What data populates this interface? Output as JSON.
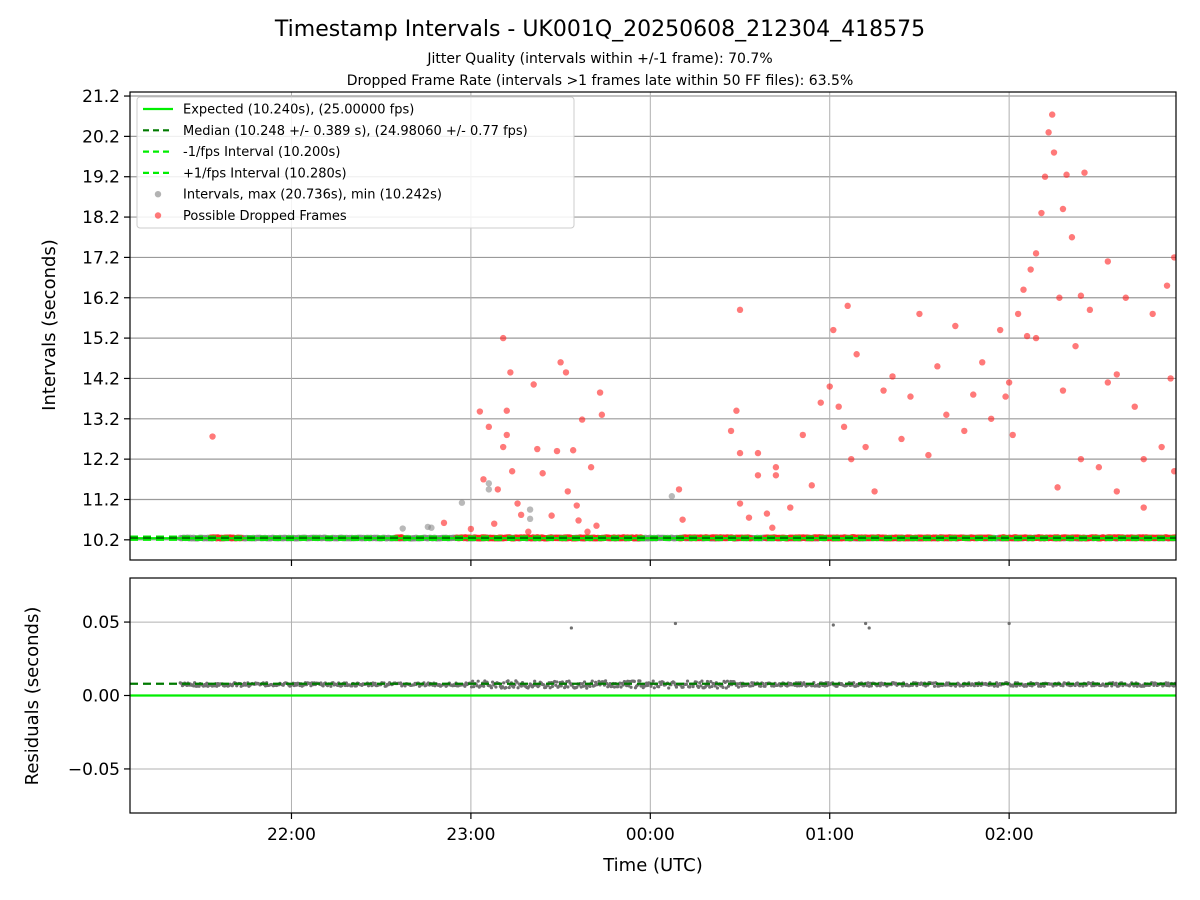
{
  "chart_data": [
    {
      "type": "scatter",
      "title": "Timestamp Intervals - UK001Q_20250608_212304_418575",
      "subtitle_lines": [
        "Jitter Quality (intervals within +/-1 frame): 70.7%",
        "Dropped Frame Rate (intervals >1 frames late within 50 FF files): 63.5%"
      ],
      "xlabel": "",
      "ylabel": "Intervals (seconds)",
      "x_unit": "hours relative to 00:00 UTC",
      "xlim": [
        -2.9,
        2.93
      ],
      "ylim": [
        9.7,
        21.3
      ],
      "yticks": [
        10.2,
        11.2,
        12.2,
        13.2,
        14.2,
        15.2,
        16.2,
        17.2,
        18.2,
        19.2,
        20.2,
        21.2
      ],
      "ytick_labels": [
        "10.2",
        "11.2",
        "12.2",
        "13.2",
        "14.2",
        "15.2",
        "16.2",
        "17.2",
        "18.2",
        "19.2",
        "20.2",
        "21.2"
      ],
      "xticks": [
        -2,
        -1,
        0,
        1,
        2
      ],
      "grid": true,
      "legend_position": "top-left",
      "colors": {
        "expected": "#00ee00",
        "median": "#007a00",
        "fps_bounds": "#00ee00",
        "intervals": "#808080",
        "dropped": "#ff2020"
      },
      "series": [
        {
          "name": "Expected (10.240s), (25.00000 fps)",
          "kind": "hline",
          "y": 10.24,
          "style": "solid"
        },
        {
          "name": "Median (10.248 +/- 0.389 s), (24.98060 +/- 0.77 fps)",
          "kind": "hline",
          "y": 10.248,
          "style": "dashed"
        },
        {
          "name": "-1/fps Interval (10.200s)",
          "kind": "hline",
          "y": 10.2,
          "style": "dashed"
        },
        {
          "name": "+1/fps Interval (10.280s)",
          "kind": "hline",
          "y": 10.28,
          "style": "dashed"
        },
        {
          "name": "Intervals, max (20.736s), min (10.242s)",
          "kind": "scatter",
          "base_y": 10.244,
          "base_x_range": [
            -2.62,
            2.93
          ],
          "points": [
            [
              -1.38,
              10.48
            ],
            [
              -1.22,
              10.5
            ],
            [
              -1.24,
              10.52
            ],
            [
              -1.05,
              11.12
            ],
            [
              -0.9,
              11.6
            ],
            [
              -0.9,
              11.45
            ],
            [
              -0.67,
              10.95
            ],
            [
              -0.67,
              10.72
            ],
            [
              0.12,
              11.28
            ]
          ]
        },
        {
          "name": "Possible Dropped Frames",
          "kind": "scatter",
          "base_y": 10.25,
          "base_x_ranges": [
            [
              -2.45,
              -2.28
            ],
            [
              -1.42,
              -1.38
            ],
            [
              -1.08,
              -1.0
            ],
            [
              -0.98,
              -0.05
            ],
            [
              0.16,
              0.56
            ],
            [
              0.64,
              1.9
            ],
            [
              1.95,
              2.93
            ]
          ],
          "points": [
            [
              -2.44,
              12.76
            ],
            [
              -1.15,
              10.62
            ],
            [
              -1.0,
              10.47
            ],
            [
              -0.95,
              13.38
            ],
            [
              -0.93,
              11.7
            ],
            [
              -0.9,
              13.0
            ],
            [
              -0.87,
              10.6
            ],
            [
              -0.85,
              11.45
            ],
            [
              -0.82,
              12.5
            ],
            [
              -0.82,
              15.2
            ],
            [
              -0.8,
              12.8
            ],
            [
              -0.8,
              13.4
            ],
            [
              -0.78,
              14.35
            ],
            [
              -0.77,
              11.9
            ],
            [
              -0.74,
              11.1
            ],
            [
              -0.72,
              10.82
            ],
            [
              -0.68,
              10.4
            ],
            [
              -0.65,
              14.05
            ],
            [
              -0.63,
              12.45
            ],
            [
              -0.6,
              11.85
            ],
            [
              -0.55,
              10.8
            ],
            [
              -0.52,
              12.4
            ],
            [
              -0.5,
              14.6
            ],
            [
              -0.47,
              14.35
            ],
            [
              -0.46,
              11.4
            ],
            [
              -0.43,
              12.42
            ],
            [
              -0.41,
              11.05
            ],
            [
              -0.4,
              10.68
            ],
            [
              -0.38,
              13.18
            ],
            [
              -0.35,
              10.4
            ],
            [
              -0.33,
              12.0
            ],
            [
              -0.3,
              10.55
            ],
            [
              -0.28,
              13.85
            ],
            [
              -0.27,
              13.3
            ],
            [
              0.16,
              11.45
            ],
            [
              0.18,
              10.7
            ],
            [
              0.45,
              12.9
            ],
            [
              0.48,
              13.4
            ],
            [
              0.5,
              12.35
            ],
            [
              0.5,
              11.1
            ],
            [
              0.5,
              15.9
            ],
            [
              0.55,
              10.75
            ],
            [
              0.6,
              12.35
            ],
            [
              0.6,
              11.8
            ],
            [
              0.65,
              10.85
            ],
            [
              0.68,
              10.5
            ],
            [
              0.7,
              11.8
            ],
            [
              0.7,
              12.0
            ],
            [
              0.78,
              11.0
            ],
            [
              0.85,
              12.8
            ],
            [
              0.9,
              11.55
            ],
            [
              0.95,
              13.6
            ],
            [
              1.0,
              14.0
            ],
            [
              1.02,
              15.4
            ],
            [
              1.05,
              13.5
            ],
            [
              1.08,
              13.0
            ],
            [
              1.1,
              16.0
            ],
            [
              1.12,
              12.2
            ],
            [
              1.15,
              14.8
            ],
            [
              1.2,
              12.5
            ],
            [
              1.25,
              11.4
            ],
            [
              1.3,
              13.9
            ],
            [
              1.35,
              14.25
            ],
            [
              1.4,
              12.7
            ],
            [
              1.45,
              13.75
            ],
            [
              1.5,
              15.8
            ],
            [
              1.55,
              12.3
            ],
            [
              1.6,
              14.5
            ],
            [
              1.65,
              13.3
            ],
            [
              1.7,
              15.5
            ],
            [
              1.75,
              12.9
            ],
            [
              1.8,
              13.8
            ],
            [
              1.85,
              14.6
            ],
            [
              1.9,
              13.2
            ],
            [
              1.95,
              15.4
            ],
            [
              1.98,
              13.75
            ],
            [
              2.0,
              14.1
            ],
            [
              2.02,
              12.8
            ],
            [
              2.05,
              15.8
            ],
            [
              2.08,
              16.4
            ],
            [
              2.1,
              15.25
            ],
            [
              2.12,
              16.9
            ],
            [
              2.15,
              17.3
            ],
            [
              2.18,
              18.3
            ],
            [
              2.2,
              19.2
            ],
            [
              2.22,
              20.3
            ],
            [
              2.24,
              20.74
            ],
            [
              2.25,
              19.8
            ],
            [
              2.28,
              16.2
            ],
            [
              2.3,
              18.4
            ],
            [
              2.32,
              19.25
            ],
            [
              2.35,
              17.7
            ],
            [
              2.37,
              15.0
            ],
            [
              2.4,
              16.25
            ],
            [
              2.42,
              19.3
            ],
            [
              2.45,
              15.9
            ],
            [
              2.5,
              12.0
            ],
            [
              2.55,
              17.1
            ],
            [
              2.6,
              14.3
            ],
            [
              2.65,
              16.2
            ],
            [
              2.7,
              13.5
            ],
            [
              2.75,
              11.0
            ],
            [
              2.8,
              15.8
            ],
            [
              2.85,
              12.5
            ],
            [
              2.88,
              16.5
            ],
            [
              2.9,
              14.2
            ],
            [
              2.92,
              17.2
            ],
            [
              2.92,
              11.9
            ],
            [
              2.27,
              11.5
            ],
            [
              2.3,
              13.9
            ],
            [
              2.15,
              15.2
            ],
            [
              2.4,
              12.2
            ],
            [
              2.6,
              11.4
            ],
            [
              2.55,
              14.1
            ],
            [
              2.75,
              12.2
            ]
          ]
        }
      ]
    },
    {
      "type": "scatter",
      "title": "",
      "xlabel": "Time (UTC)",
      "ylabel": "Residuals (seconds)",
      "xlim": [
        -2.9,
        2.93
      ],
      "ylim": [
        -0.08,
        0.08
      ],
      "yticks": [
        -0.05,
        0.0,
        0.05
      ],
      "ytick_labels": [
        "−0.05",
        "0.00",
        "0.05"
      ],
      "xticks": [
        -2,
        -1,
        0,
        1,
        2
      ],
      "xtick_labels": [
        "22:00",
        "23:00",
        "00:00",
        "01:00",
        "02:00"
      ],
      "grid": true,
      "series": [
        {
          "kind": "hline",
          "y": 0.0,
          "style": "solid",
          "color": "#00ee00"
        },
        {
          "kind": "hline",
          "y": 0.008,
          "style": "dashed",
          "color": "#007a00"
        },
        {
          "kind": "scatter",
          "base_y": 0.0075,
          "base_x_range": [
            -2.62,
            2.93
          ],
          "points": [
            [
              -0.44,
              0.046
            ],
            [
              0.14,
              0.049
            ],
            [
              1.02,
              0.048
            ],
            [
              1.2,
              0.049
            ],
            [
              1.22,
              0.046
            ],
            [
              2.0,
              0.049
            ]
          ]
        }
      ]
    }
  ]
}
